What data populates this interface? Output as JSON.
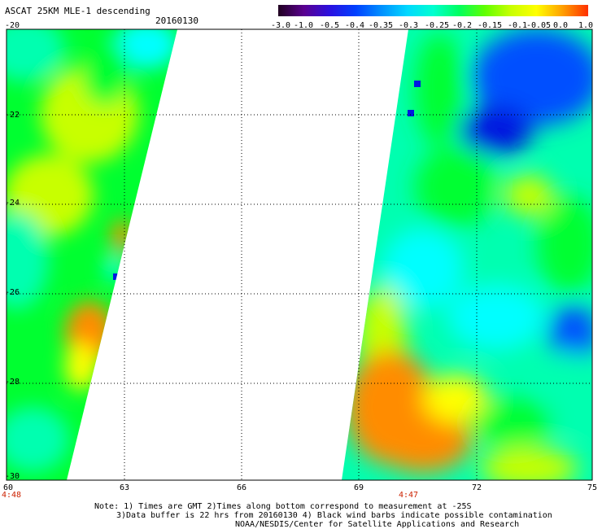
{
  "header": {
    "title": "ASCAT 25KM MLE-1 descending",
    "date": "20160130"
  },
  "colorbar": {
    "labels": [
      "-3.0",
      "-1.0",
      "-0.5",
      "-0.4",
      "-0.35",
      "-0.3",
      "-0.25",
      "-0.2",
      "-0.15",
      "-0.1",
      "-0.05",
      "0.0",
      "1.0"
    ],
    "colors": [
      "#200020",
      "#5a0090",
      "#2a10e0",
      "#0040ff",
      "#0090ff",
      "#00d8ff",
      "#00ffd0",
      "#00ff60",
      "#60ff00",
      "#c8ff00",
      "#ffff00",
      "#ffa000",
      "#ff3000"
    ]
  },
  "map": {
    "lat_labels": [
      "-20",
      "-22",
      "-24",
      "-26",
      "-28",
      "-30"
    ],
    "lon_labels": [
      "60",
      "63",
      "66",
      "69",
      "72",
      "75"
    ],
    "lat_range": [
      -30,
      -20
    ],
    "lon_range": [
      60,
      75
    ],
    "palette": {
      "orange": "#ff8c00",
      "yellow": "#ffff00",
      "yellow_green": "#c8ff00",
      "green": "#00ff30",
      "cyan_green": "#00ffb0",
      "cyan": "#00ffff",
      "light_blue": "#00b8ff",
      "blue": "#0050ff",
      "deep_blue": "#0018e0"
    },
    "swath_times": [
      "4:48",
      "4:47"
    ]
  },
  "footer": {
    "note_line1": "Note: 1) Times are GMT 2)Times along bottom correspond to measurement at -25S",
    "note_line2": "3)Data buffer is 22 hrs from 20160130 4) Black wind barbs indicate possible contamination",
    "credit": "NOAA/NESDIS/Center for Satellite Applications and Research"
  }
}
